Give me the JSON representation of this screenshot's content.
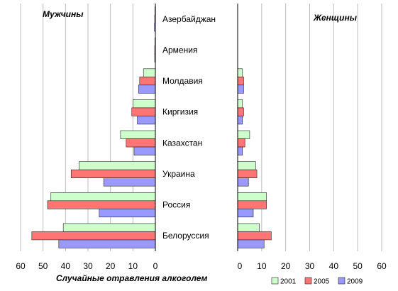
{
  "chart_data": {
    "type": "bar",
    "orientation": "horizontal",
    "xlabel": "Случайные отравления алкоголем",
    "categories": [
      "Азербайджан",
      "Армения",
      "Молдавия",
      "Киргизия",
      "Казахстан",
      "Украина",
      "Россия",
      "Белоруссия"
    ],
    "xlim": [
      0,
      60
    ],
    "x_ticks": [
      "0",
      "10",
      "20",
      "30",
      "40",
      "50",
      "60"
    ],
    "grid": true,
    "legend": "bottom-right",
    "series_names": [
      "2001",
      "2005",
      "2009"
    ],
    "colors": [
      "#ccffcc",
      "#ff7575",
      "#9999ff"
    ],
    "panels": [
      {
        "title": "Мужчины",
        "direction": "reversed",
        "series": [
          {
            "name": "2001",
            "values": [
              0.2,
              0.2,
              5.3,
              10,
              15.5,
              34,
              46.5,
              41
            ]
          },
          {
            "name": "2005",
            "values": [
              0.3,
              0.3,
              7,
              10.5,
              13,
              37.5,
              48,
              55
            ]
          },
          {
            "name": "2009",
            "values": [
              0.4,
              0.3,
              7.5,
              8,
              9.5,
              23,
              25,
              43
            ]
          }
        ]
      },
      {
        "title": "Женщины",
        "direction": "normal",
        "series": [
          {
            "name": "2001",
            "values": [
              0,
              0,
              2,
              2,
              5,
              7.5,
              12,
              9
            ]
          },
          {
            "name": "2005",
            "values": [
              0,
              0,
              2.5,
              2.5,
              3,
              8,
              12,
              14
            ]
          },
          {
            "name": "2009",
            "values": [
              0,
              0,
              2.5,
              2,
              2,
              4.5,
              6.5,
              11
            ]
          }
        ]
      }
    ]
  }
}
